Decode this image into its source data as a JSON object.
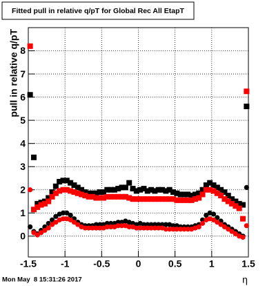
{
  "chart_data": {
    "type": "scatter",
    "title": "Fitted pull in relative q/pT for Global Rec All EtapT",
    "y_label": "pull in relative q/pT",
    "x_label": "η",
    "timestamp": "Mon May  8 15:31:26 2017",
    "x": [
      -1.475,
      -1.425,
      -1.375,
      -1.325,
      -1.275,
      -1.225,
      -1.175,
      -1.125,
      -1.075,
      -1.025,
      -0.975,
      -0.925,
      -0.875,
      -0.825,
      -0.775,
      -0.725,
      -0.675,
      -0.625,
      -0.575,
      -0.525,
      -0.475,
      -0.425,
      -0.375,
      -0.325,
      -0.275,
      -0.225,
      -0.175,
      -0.125,
      -0.075,
      -0.025,
      0.025,
      0.075,
      0.125,
      0.175,
      0.225,
      0.275,
      0.325,
      0.375,
      0.425,
      0.475,
      0.525,
      0.575,
      0.625,
      0.675,
      0.725,
      0.775,
      0.825,
      0.875,
      0.925,
      0.975,
      1.025,
      1.075,
      1.125,
      1.175,
      1.225,
      1.275,
      1.325,
      1.375,
      1.425,
      1.475
    ],
    "series": [
      {
        "color": "#000000",
        "marker": "square",
        "values": [
          6.1,
          3.4,
          1.4,
          1.45,
          1.5,
          1.65,
          1.9,
          2.15,
          2.35,
          2.4,
          2.4,
          2.3,
          2.2,
          2.1,
          2.0,
          1.9,
          1.85,
          1.85,
          1.85,
          1.9,
          1.9,
          2.0,
          2.0,
          2.0,
          2.05,
          2.1,
          2.1,
          2.3,
          2.05,
          1.95,
          2.0,
          2.05,
          1.95,
          2.0,
          1.95,
          2.0,
          2.0,
          1.95,
          2.0,
          1.9,
          1.85,
          1.8,
          1.8,
          1.8,
          1.75,
          1.8,
          1.85,
          2.0,
          2.2,
          2.3,
          2.2,
          2.1,
          2.0,
          1.9,
          1.75,
          1.6,
          1.5,
          1.4,
          1.35,
          5.6
        ]
      },
      {
        "color": "#ff0000",
        "marker": "square",
        "values": [
          8.2,
          1.15,
          1.25,
          1.35,
          1.4,
          1.5,
          1.7,
          1.85,
          1.95,
          2.0,
          2.0,
          1.95,
          1.9,
          1.85,
          1.8,
          1.75,
          1.7,
          1.7,
          1.65,
          1.65,
          1.65,
          1.7,
          1.7,
          1.7,
          1.7,
          1.7,
          1.7,
          1.65,
          1.6,
          1.6,
          1.6,
          1.6,
          1.6,
          1.6,
          1.6,
          1.6,
          1.6,
          1.6,
          1.6,
          1.6,
          1.55,
          1.55,
          1.55,
          1.55,
          1.55,
          1.6,
          1.65,
          1.8,
          2.0,
          2.0,
          1.95,
          1.85,
          1.75,
          1.6,
          1.5,
          1.4,
          1.3,
          1.2,
          0.75,
          6.25
        ]
      },
      {
        "color": "#000000",
        "marker": "circle",
        "values": [
          0.4,
          0.2,
          0.1,
          0.25,
          0.4,
          0.55,
          0.7,
          0.85,
          0.95,
          1.0,
          1.0,
          0.9,
          0.75,
          0.6,
          0.5,
          0.45,
          0.45,
          0.45,
          0.5,
          0.5,
          0.5,
          0.55,
          0.55,
          0.55,
          0.6,
          0.6,
          0.65,
          0.6,
          0.55,
          0.5,
          0.55,
          0.5,
          0.5,
          0.5,
          0.5,
          0.5,
          0.5,
          0.5,
          0.5,
          0.45,
          0.45,
          0.4,
          0.4,
          0.4,
          0.4,
          0.45,
          0.5,
          0.7,
          0.9,
          1.0,
          0.95,
          0.8,
          0.65,
          0.5,
          0.4,
          0.3,
          0.2,
          0.1,
          0.0,
          2.1
        ]
      },
      {
        "color": "#ff0000",
        "marker": "circle",
        "values": [
          2.0,
          0.15,
          0.05,
          0.15,
          0.25,
          0.35,
          0.5,
          0.6,
          0.7,
          0.75,
          0.75,
          0.7,
          0.6,
          0.5,
          0.4,
          0.35,
          0.35,
          0.35,
          0.35,
          0.35,
          0.35,
          0.4,
          0.4,
          0.4,
          0.45,
          0.45,
          0.45,
          0.4,
          0.4,
          0.35,
          0.35,
          0.35,
          0.35,
          0.35,
          0.35,
          0.35,
          0.35,
          0.3,
          0.3,
          0.3,
          0.3,
          0.3,
          0.3,
          0.3,
          0.3,
          0.35,
          0.4,
          0.55,
          0.7,
          0.75,
          0.7,
          0.6,
          0.5,
          0.4,
          0.3,
          0.2,
          0.1,
          0.0,
          -0.05,
          0.45
        ]
      }
    ],
    "xlim": [
      -1.5,
      1.5
    ],
    "xticks": [
      -1.5,
      -1,
      -0.5,
      0,
      0.5,
      1,
      1.5
    ],
    "ylim": [
      -0.9,
      9.0
    ],
    "yticks": [
      0,
      1,
      2,
      3,
      4,
      5,
      6,
      7,
      8
    ],
    "grid": true
  }
}
